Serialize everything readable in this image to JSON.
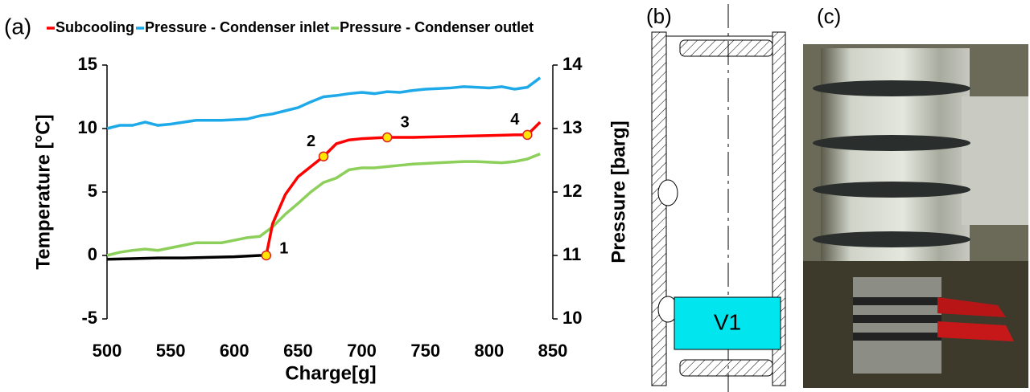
{
  "chart_data": {
    "type": "line",
    "panel_label": "(a)",
    "x_label": "Charge[g]",
    "y_label": "Temperature [°C]",
    "y2_label": "Pressure [barg]",
    "xlim": [
      500,
      850
    ],
    "xticks": [
      500,
      550,
      600,
      650,
      700,
      750,
      800,
      850
    ],
    "ylim": [
      -5,
      15
    ],
    "yticks": [
      -5,
      0,
      5,
      10,
      15
    ],
    "y2lim": [
      10,
      14
    ],
    "y2ticks": [
      10,
      11,
      12,
      13,
      14
    ],
    "series": [
      {
        "name": "Subcooling",
        "color": "#ff0000",
        "x": [
          625,
          630,
          640,
          650,
          660,
          670,
          680,
          690,
          700,
          720,
          740,
          760,
          780,
          800,
          820,
          830,
          840
        ],
        "values": [
          0,
          2.5,
          4.8,
          6.2,
          7.0,
          7.8,
          8.8,
          9.1,
          9.2,
          9.3,
          9.3,
          9.35,
          9.4,
          9.45,
          9.5,
          9.5,
          10.5
        ]
      },
      {
        "name": "Pressure - Condenser inlet",
        "color": "#1ea9e8",
        "axis": "y2",
        "x": [
          500,
          510,
          520,
          530,
          540,
          550,
          560,
          570,
          580,
          590,
          600,
          610,
          620,
          630,
          640,
          650,
          660,
          670,
          680,
          690,
          700,
          710,
          720,
          730,
          740,
          750,
          760,
          770,
          780,
          790,
          800,
          810,
          820,
          830,
          840
        ],
        "values": [
          13.0,
          13.05,
          13.05,
          13.1,
          13.05,
          13.07,
          13.1,
          13.13,
          13.13,
          13.13,
          13.14,
          13.15,
          13.2,
          13.23,
          13.28,
          13.33,
          13.42,
          13.5,
          13.52,
          13.55,
          13.57,
          13.55,
          13.58,
          13.57,
          13.6,
          13.62,
          13.63,
          13.64,
          13.66,
          13.65,
          13.64,
          13.66,
          13.62,
          13.65,
          13.8
        ]
      },
      {
        "name": "Pressure - Condenser outlet",
        "color": "#8ccf5a",
        "axis": "y2",
        "x": [
          500,
          510,
          520,
          530,
          540,
          550,
          560,
          570,
          580,
          590,
          600,
          610,
          620,
          630,
          640,
          650,
          660,
          670,
          680,
          690,
          700,
          710,
          720,
          730,
          740,
          750,
          760,
          770,
          780,
          790,
          800,
          810,
          820,
          830,
          840
        ],
        "values": [
          11.0,
          11.05,
          11.08,
          11.1,
          11.08,
          11.12,
          11.16,
          11.2,
          11.2,
          11.2,
          11.24,
          11.28,
          11.3,
          11.45,
          11.65,
          11.82,
          12.0,
          12.15,
          12.22,
          12.35,
          12.38,
          12.38,
          12.4,
          12.42,
          12.44,
          12.45,
          12.46,
          12.47,
          12.48,
          12.48,
          12.47,
          12.46,
          12.48,
          12.52,
          12.6
        ]
      },
      {
        "color": "#000000",
        "x": [
          500,
          520,
          540,
          560,
          580,
          600,
          620,
          625
        ],
        "values": [
          -0.3,
          -0.25,
          -0.2,
          -0.2,
          -0.15,
          -0.1,
          0,
          0
        ]
      }
    ],
    "annotations": [
      {
        "text": "1",
        "x": 625,
        "y": 0
      },
      {
        "text": "2",
        "x": 670,
        "y": 7.8
      },
      {
        "text": "3",
        "x": 720,
        "y": 9.3
      },
      {
        "text": "4",
        "x": 830,
        "y": 9.5
      }
    ]
  },
  "diagram": {
    "panel_label": "(b)",
    "valve": "V1"
  },
  "photo": {
    "panel_label": "(c)"
  }
}
